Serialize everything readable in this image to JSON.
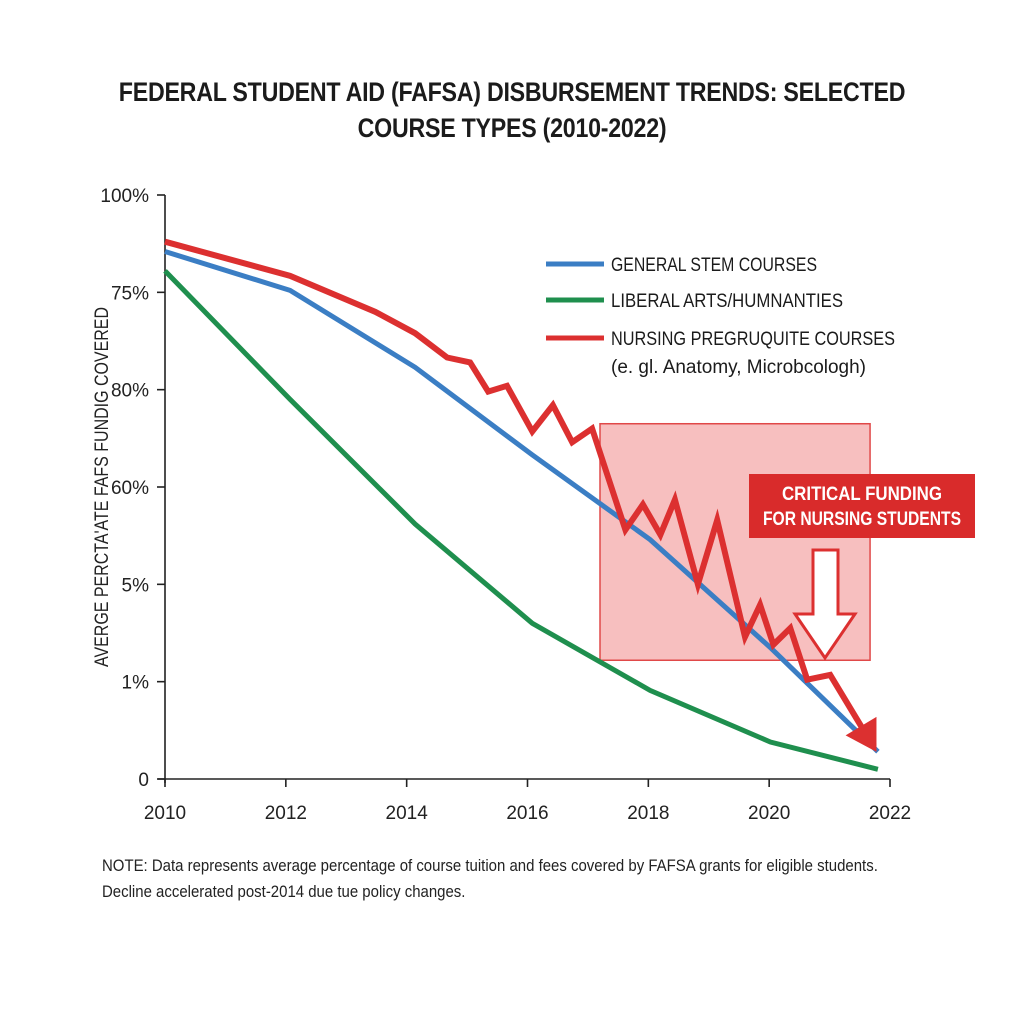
{
  "chart_data": {
    "type": "line",
    "title_lines": [
      "FEDERAL STUDENT AID (FAFSA) DISBURSEMENT TRENDS: SELECTED",
      "COURSE TYPES (2010-2022)"
    ],
    "xlabel": "",
    "ylabel": "AVERGE PERCTA'ATE FAFS FUNDIG COVERED",
    "x_ticks": [
      2010,
      2012,
      2014,
      2016,
      2018,
      2020,
      2022
    ],
    "xlim": [
      2010,
      2022
    ],
    "y_ticks": [
      "0",
      "1%",
      "5%",
      "60%",
      "80%",
      "75%",
      "100%"
    ],
    "y_scale_note": "values expressed as position on the tick ladder: 0 = '0' tick, 6 = '100%' tick",
    "ylim": [
      0,
      6
    ],
    "grid": false,
    "legend_position": "top-right",
    "series": [
      {
        "name": "GENERAL STEM COURSES",
        "color": "#3b7ec4",
        "x": [
          2010,
          2012.07,
          2014.14,
          2016.08,
          2018.03,
          2020.02,
          2021.8
        ],
        "values": [
          5.42,
          5.02,
          4.23,
          3.33,
          2.46,
          1.35,
          0.28
        ]
      },
      {
        "name": "LIBERAL ARTS/HUMNANTIES",
        "color": "#1f8f4e",
        "x": [
          2010,
          2012.07,
          2014.14,
          2016.08,
          2018.03,
          2020.02,
          2021.8
        ],
        "values": [
          5.22,
          3.9,
          2.62,
          1.6,
          0.91,
          0.38,
          0.1
        ]
      },
      {
        "name": "NURSING PREGRUQUITE COURSES",
        "name_line2": "(e. gl. Anatomy, Microbcologh)",
        "color": "#dc3030",
        "x": [
          2010,
          2012.07,
          2013.48,
          2014.14,
          2014.67,
          2015.05,
          2015.35,
          2015.66,
          2016.08,
          2016.42,
          2016.74,
          2017.07,
          2017.62,
          2017.91,
          2018.2,
          2018.44,
          2018.82,
          2019.14,
          2019.6,
          2019.85,
          2020.07,
          2020.35,
          2020.63,
          2021.01,
          2021.64
        ],
        "values": [
          5.52,
          5.17,
          4.8,
          4.58,
          4.33,
          4.28,
          3.98,
          4.04,
          3.57,
          3.84,
          3.46,
          3.6,
          2.56,
          2.82,
          2.51,
          2.87,
          2.0,
          2.66,
          1.46,
          1.79,
          1.38,
          1.55,
          1.02,
          1.07,
          0.42
        ],
        "end_arrow": true
      }
    ],
    "highlight_region": {
      "x_range": [
        2017.2,
        2021.67
      ],
      "y_range": [
        1.22,
        3.65
      ],
      "color": "#f08080"
    },
    "annotation": {
      "lines": [
        "CRITICAL FUNDING",
        "FOR NURSING STUDENTS"
      ],
      "background": "#d92b2b",
      "arrow": "down-arrow"
    }
  },
  "note": {
    "line1": "NOTE: Data represents average percentage of course tuition and fees covered by FAFSA grants for eligible students.",
    "line2": "Decline accelerated post-2014 due tue policy changes."
  }
}
